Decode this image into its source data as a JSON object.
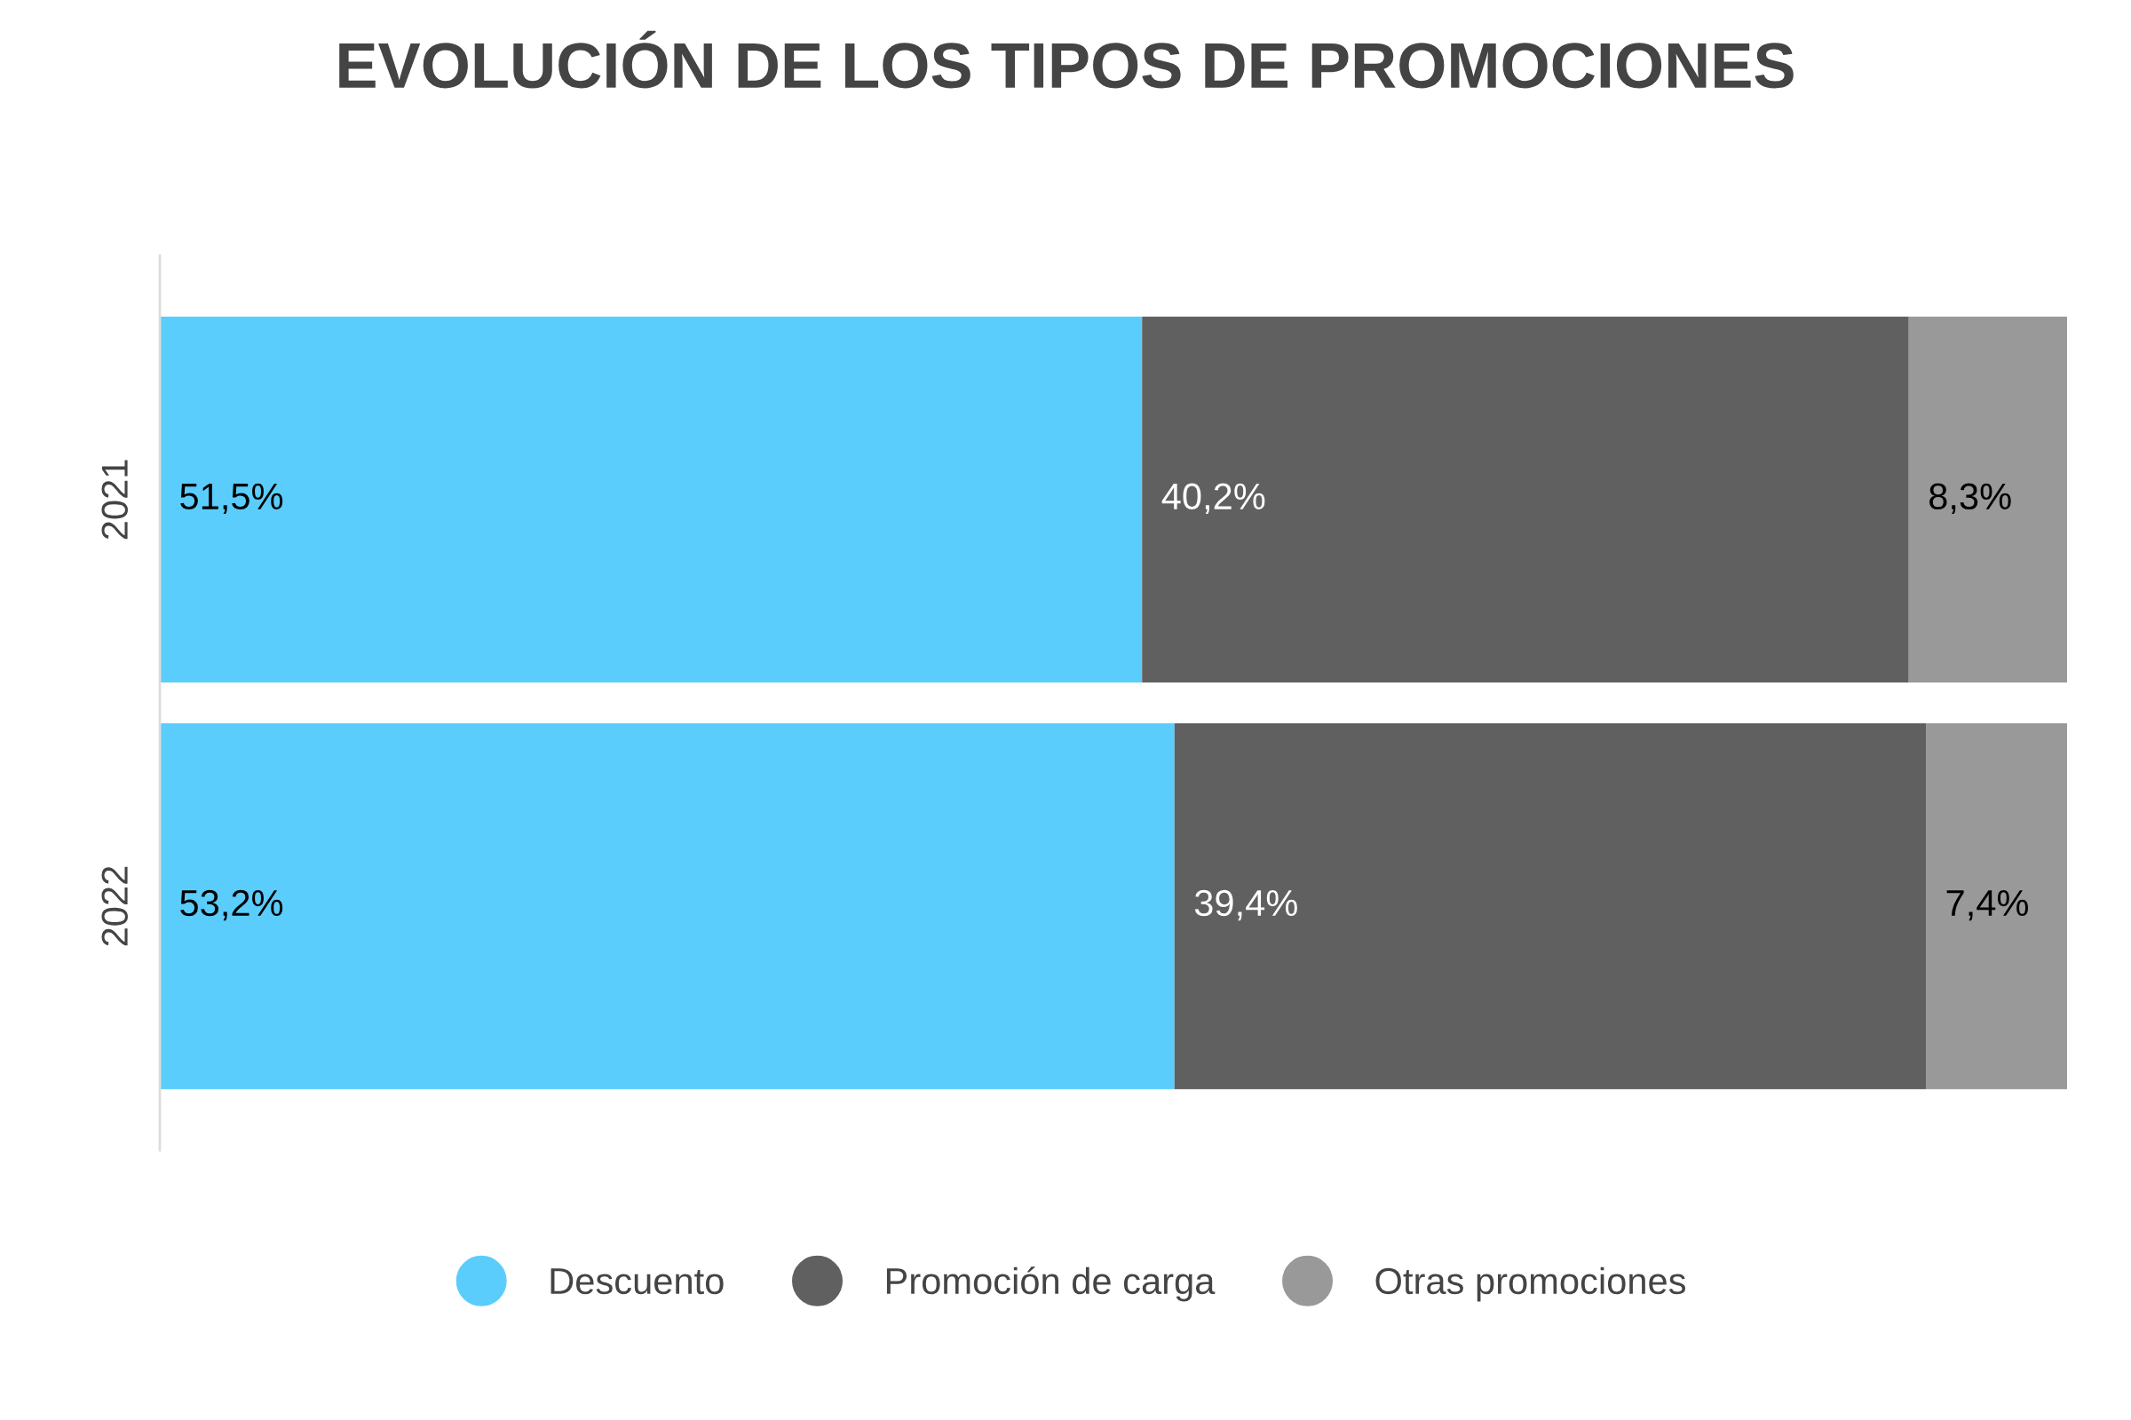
{
  "chart_data": {
    "type": "bar",
    "orientation": "horizontal",
    "stacked": true,
    "title": "EVOLUCIÓN DE LOS TIPOS DE PROMOCIONES",
    "categories": [
      "2021",
      "2022"
    ],
    "series": [
      {
        "name": "Descuento",
        "color": "#5acdfd",
        "values": [
          51.5,
          53.2
        ],
        "value_labels": [
          "51,5%",
          "53,2%"
        ]
      },
      {
        "name": "Promoción de carga",
        "color": "#606060",
        "values": [
          40.2,
          39.4
        ],
        "value_labels": [
          "40,2%",
          "39,4%"
        ]
      },
      {
        "name": "Otras promociones",
        "color": "#999999",
        "values": [
          8.3,
          7.4
        ],
        "value_labels": [
          "8,3%",
          "7,4%"
        ]
      }
    ],
    "xlim": [
      0,
      100
    ],
    "tick_labels": "y",
    "grid": false,
    "legend": "bottom"
  }
}
